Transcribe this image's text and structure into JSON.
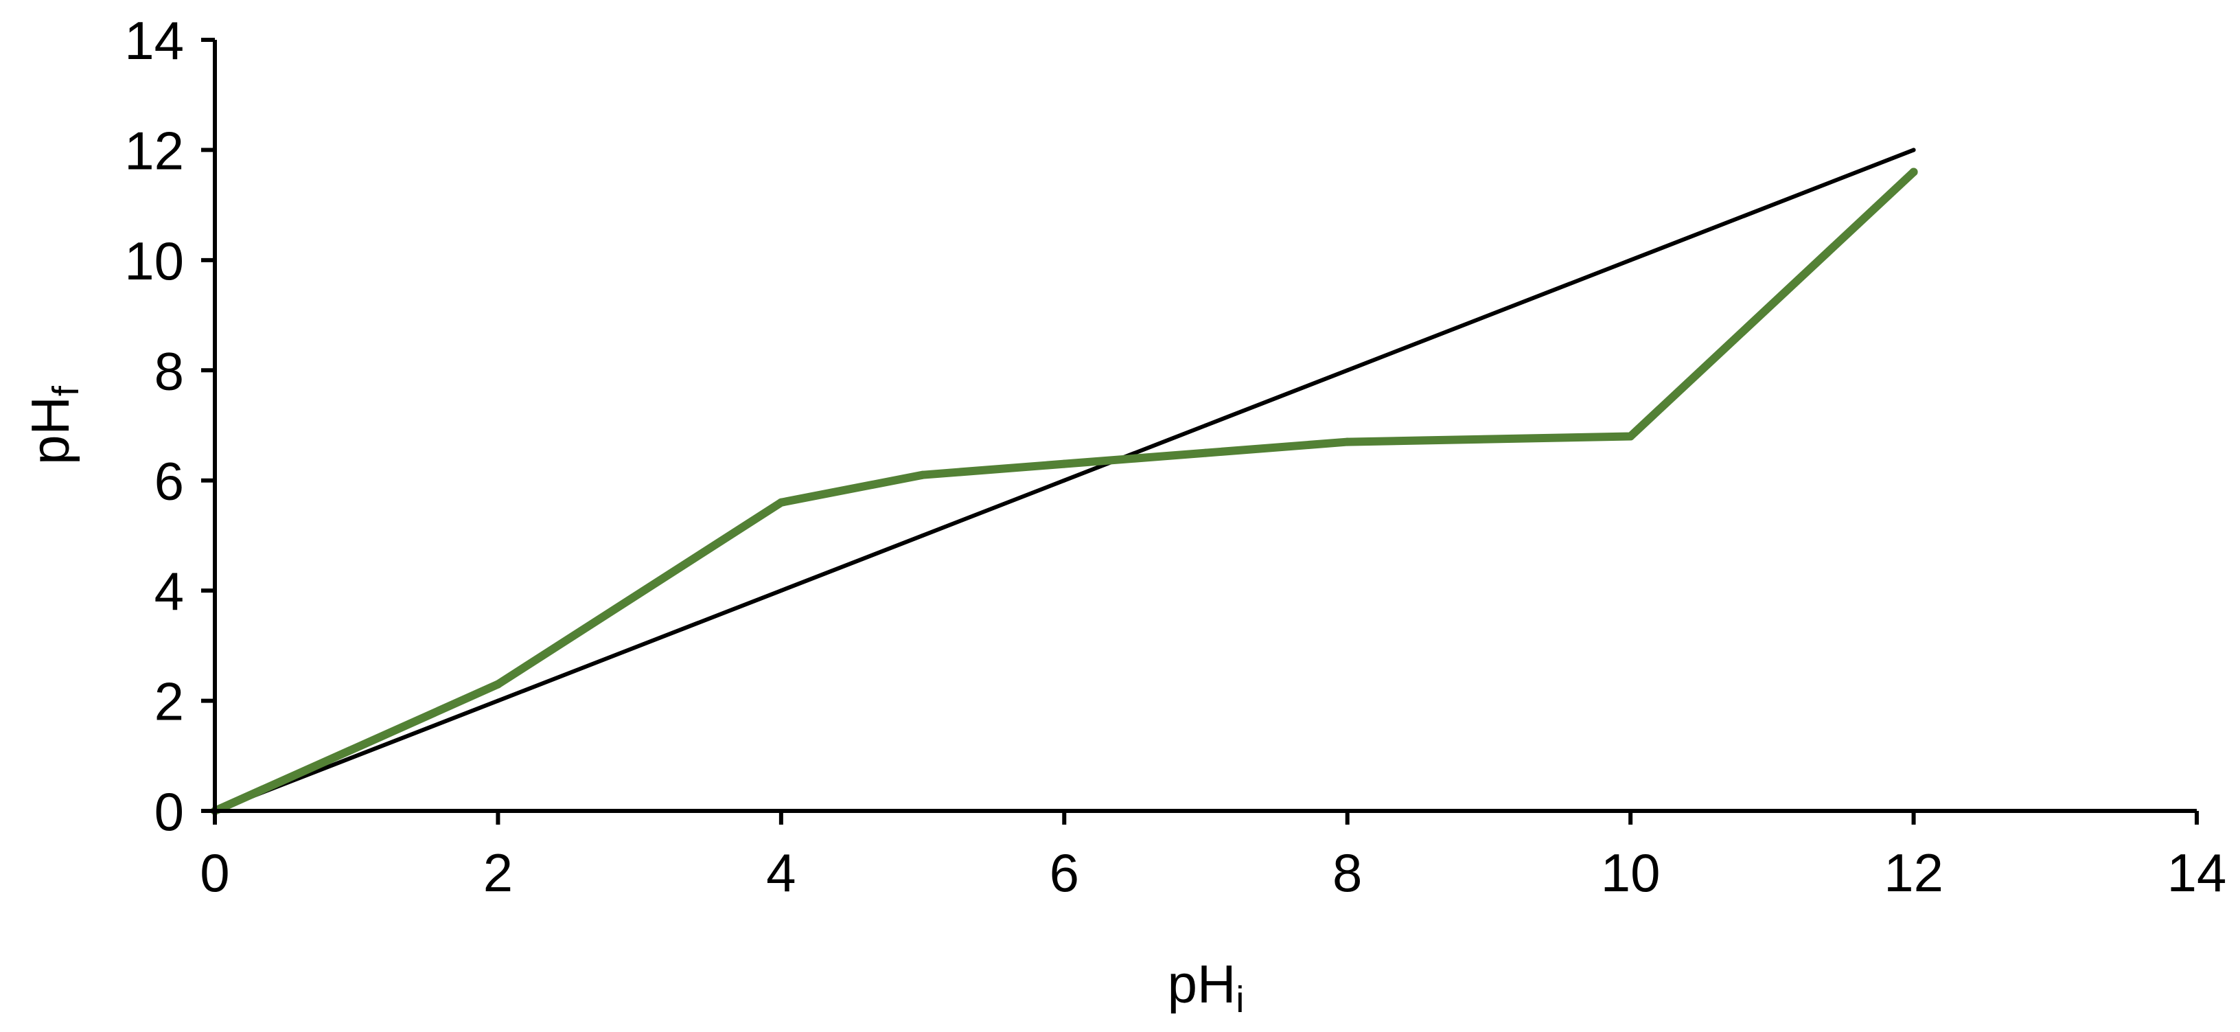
{
  "chart_data": {
    "type": "line",
    "title": "",
    "xlabel": {
      "base": "pH",
      "sub": "i"
    },
    "ylabel": {
      "base": "pH",
      "sub": "f"
    },
    "xlim": [
      0,
      14
    ],
    "ylim": [
      0,
      14
    ],
    "x_ticks": [
      0,
      2,
      4,
      6,
      8,
      10,
      12,
      14
    ],
    "y_ticks": [
      0,
      2,
      4,
      6,
      8,
      10,
      12,
      14
    ],
    "grid": false,
    "legend": "none",
    "series": [
      {
        "color": "#000000",
        "points": [
          [
            0,
            0
          ],
          [
            2,
            2
          ],
          [
            4,
            4
          ],
          [
            5,
            5
          ],
          [
            6,
            6
          ],
          [
            7,
            7
          ],
          [
            8,
            8
          ],
          [
            10,
            10
          ],
          [
            12,
            12
          ]
        ]
      },
      {
        "color": "#538135",
        "points": [
          [
            0,
            0
          ],
          [
            2,
            2.3
          ],
          [
            4,
            5.6
          ],
          [
            5,
            6.1
          ],
          [
            6,
            6.3
          ],
          [
            7,
            6.5
          ],
          [
            8,
            6.7
          ],
          [
            10,
            6.8
          ],
          [
            12,
            11.6
          ]
        ]
      }
    ]
  }
}
